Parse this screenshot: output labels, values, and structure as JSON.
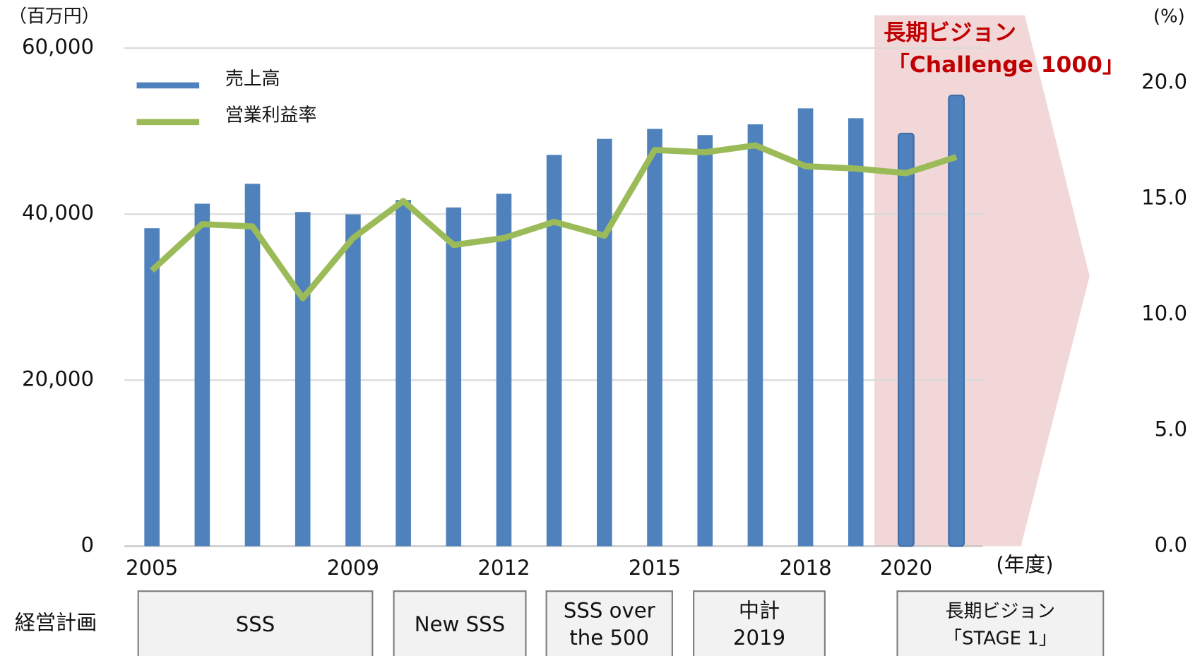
{
  "chart_data": {
    "type": "bar",
    "y_unit_label": "（百万円）",
    "y2_unit_label": "(%)",
    "x_unit_label": "(年度)",
    "annotation": [
      "長期ビジョン",
      "「Challenge 1000」"
    ],
    "categories": [
      "2005",
      null,
      null,
      null,
      "2009",
      null,
      null,
      "2012",
      null,
      null,
      "2015",
      null,
      null,
      "2018",
      null,
      "2020",
      null
    ],
    "series": [
      {
        "name": "売上高",
        "type": "bar",
        "color": "#4f81bd",
        "values": [
          38300,
          41250,
          43650,
          40250,
          39970,
          41700,
          40800,
          42450,
          47130,
          49060,
          50260,
          49520,
          50810,
          52740,
          51550,
          49710,
          54300
        ]
      },
      {
        "name": "営業利益率",
        "type": "line",
        "axis": "y2",
        "color": "#9bbb59",
        "values": [
          11.9,
          13.9,
          13.8,
          10.7,
          13.3,
          14.9,
          13.0,
          13.3,
          14.0,
          13.4,
          17.1,
          17.0,
          17.3,
          16.4,
          16.3,
          16.1,
          16.8
        ]
      }
    ],
    "ylim": [
      0,
      60000
    ],
    "yticks": [
      {
        "value": 0,
        "label": "0"
      },
      {
        "value": 20000,
        "label": "20,000"
      },
      {
        "value": 40000,
        "label": "40,000"
      },
      {
        "value": 60000,
        "label": "60,000"
      }
    ],
    "y2lim": [
      0,
      21.5
    ],
    "y2ticks": [
      {
        "value": 0,
        "label": "0.0"
      },
      {
        "value": 5,
        "label": "5.0"
      },
      {
        "value": 10,
        "label": "10.0"
      },
      {
        "value": 15,
        "label": "15.0"
      },
      {
        "value": 20,
        "label": "20.0"
      }
    ],
    "grid": true,
    "legend": "upper left",
    "plan_label": "経営計画",
    "plans": [
      [
        "SSS"
      ],
      [
        "New SSS"
      ],
      [
        "SSS over",
        "the 500"
      ],
      [
        "中計",
        "2019"
      ],
      [
        "長期ビジョン",
        "「STAGE 1」"
      ]
    ]
  }
}
